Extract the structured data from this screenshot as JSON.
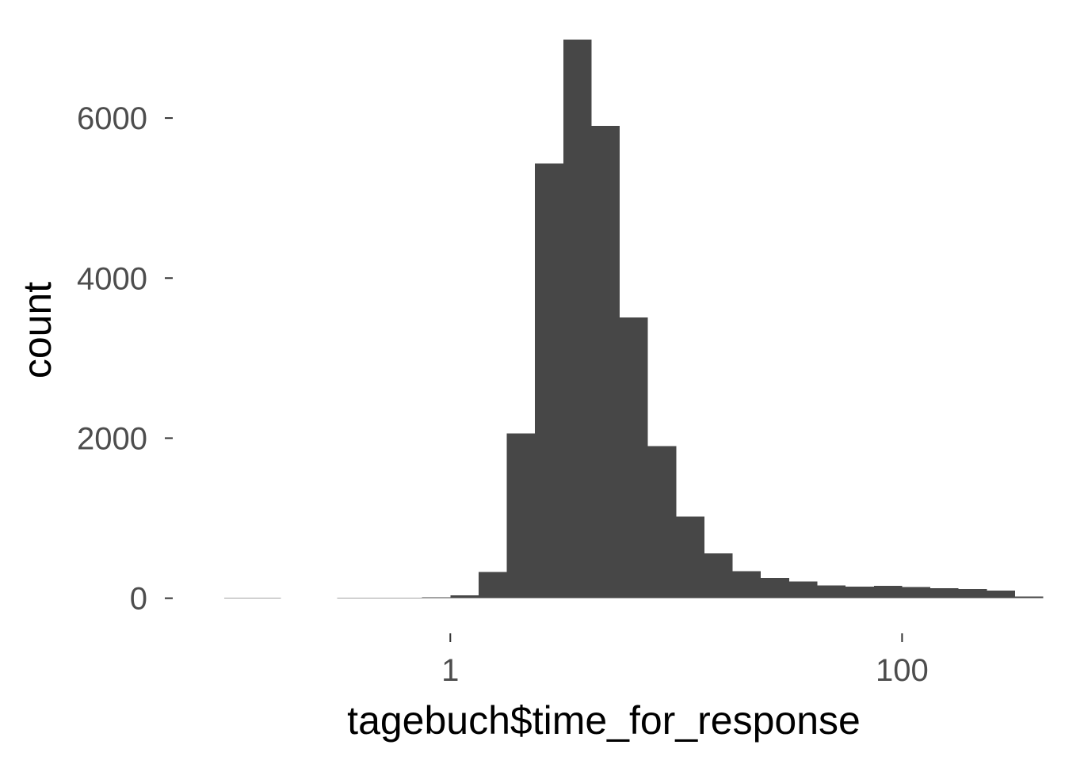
{
  "chart_data": {
    "type": "bar",
    "title": "",
    "xlabel": "tagebuch$time_for_response",
    "ylabel": "count",
    "x_scale": "log10",
    "bar_color": "#474747",
    "background": "#ffffff",
    "grid": false,
    "legend": "none",
    "xlim": [
      0.06,
      400
    ],
    "ylim": [
      -340,
      7000
    ],
    "x_ticks": [
      {
        "value": 1,
        "label": "1"
      },
      {
        "value": 100,
        "label": "100"
      }
    ],
    "y_ticks": [
      {
        "value": 0,
        "label": "0"
      },
      {
        "value": 2000,
        "label": "2000"
      },
      {
        "value": 4000,
        "label": "4000"
      },
      {
        "value": 6000,
        "label": "6000"
      }
    ],
    "bins": [
      {
        "x_start": 0.1,
        "x_end": 0.133,
        "count": 4
      },
      {
        "x_start": 0.133,
        "x_end": 0.178,
        "count": 4
      },
      {
        "x_start": 0.178,
        "x_end": 0.237,
        "count": 3
      },
      {
        "x_start": 0.237,
        "x_end": 0.316,
        "count": 0
      },
      {
        "x_start": 0.316,
        "x_end": 0.422,
        "count": 4
      },
      {
        "x_start": 0.422,
        "x_end": 0.562,
        "count": 5
      },
      {
        "x_start": 0.562,
        "x_end": 0.75,
        "count": 6
      },
      {
        "x_start": 0.75,
        "x_end": 1.0,
        "count": 12
      },
      {
        "x_start": 1.0,
        "x_end": 1.334,
        "count": 35
      },
      {
        "x_start": 1.334,
        "x_end": 1.778,
        "count": 330
      },
      {
        "x_start": 1.778,
        "x_end": 2.371,
        "count": 2060
      },
      {
        "x_start": 2.371,
        "x_end": 3.162,
        "count": 5430
      },
      {
        "x_start": 3.162,
        "x_end": 4.217,
        "count": 6980
      },
      {
        "x_start": 4.217,
        "x_end": 5.623,
        "count": 5900
      },
      {
        "x_start": 5.623,
        "x_end": 7.499,
        "count": 3510
      },
      {
        "x_start": 7.499,
        "x_end": 10.0,
        "count": 1900
      },
      {
        "x_start": 10.0,
        "x_end": 13.34,
        "count": 1020
      },
      {
        "x_start": 13.34,
        "x_end": 17.78,
        "count": 560
      },
      {
        "x_start": 17.78,
        "x_end": 23.71,
        "count": 340
      },
      {
        "x_start": 23.71,
        "x_end": 31.62,
        "count": 255
      },
      {
        "x_start": 31.62,
        "x_end": 42.17,
        "count": 210
      },
      {
        "x_start": 42.17,
        "x_end": 56.23,
        "count": 160
      },
      {
        "x_start": 56.23,
        "x_end": 74.99,
        "count": 145
      },
      {
        "x_start": 74.99,
        "x_end": 100.0,
        "count": 155
      },
      {
        "x_start": 100.0,
        "x_end": 133.4,
        "count": 140
      },
      {
        "x_start": 133.4,
        "x_end": 177.8,
        "count": 125
      },
      {
        "x_start": 177.8,
        "x_end": 237.1,
        "count": 115
      },
      {
        "x_start": 237.1,
        "x_end": 316.2,
        "count": 95
      },
      {
        "x_start": 316.2,
        "x_end": 421.7,
        "count": 20
      }
    ]
  }
}
